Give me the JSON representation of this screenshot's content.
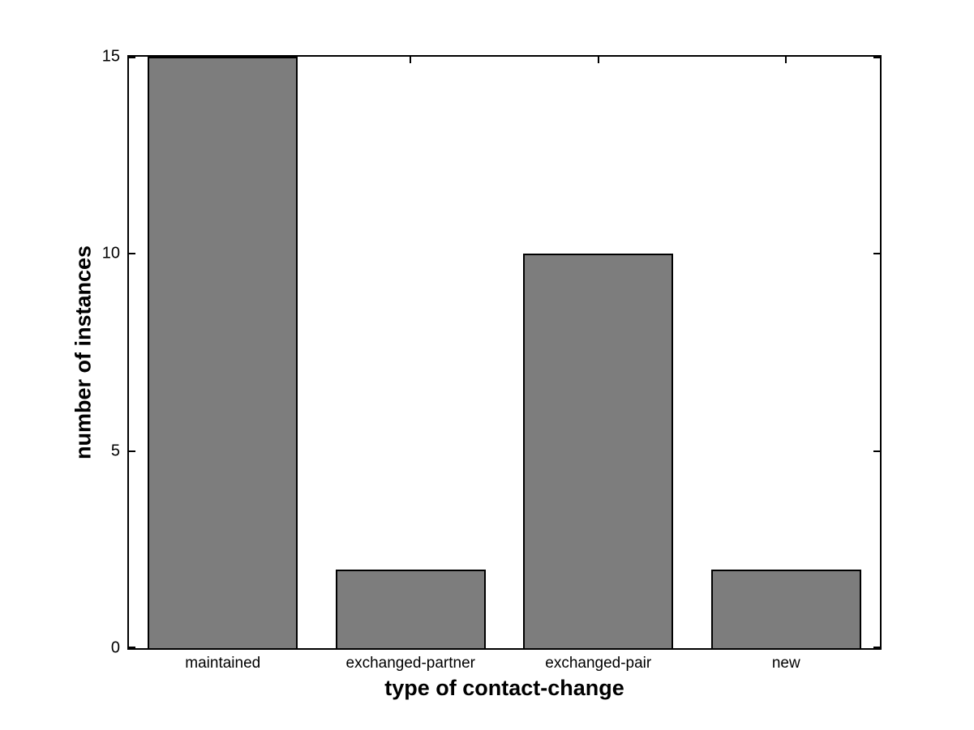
{
  "chart_data": {
    "type": "bar",
    "categories": [
      "maintained",
      "exchanged-partner",
      "exchanged-pair",
      "new"
    ],
    "values": [
      15,
      2,
      10,
      2
    ],
    "title": "",
    "xlabel": "type of contact-change",
    "ylabel": "number of instances",
    "ylim": [
      0,
      15
    ],
    "yticks": [
      0,
      5,
      10,
      15
    ],
    "bar_width_fraction": 0.8,
    "bar_color": "#7d7d7d",
    "bar_edge_color": "#000000",
    "axis_color": "#000000",
    "background_color": "#ffffff",
    "grid": false,
    "legend": null
  }
}
